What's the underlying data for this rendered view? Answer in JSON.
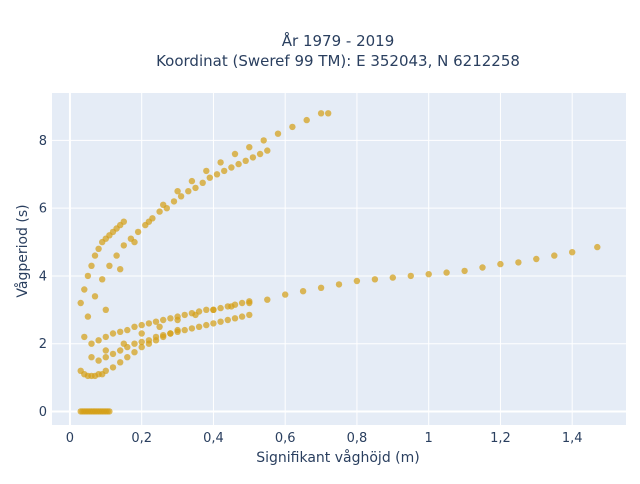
{
  "chart_data": {
    "type": "scatter",
    "title_line1": "År 1979 - 2019",
    "title_line2": "Koordinat (Sweref 99 TM): E 352043, N 6212258",
    "xlabel": "Signifikant våghöjd (m)",
    "ylabel": "Vågperiod (s)",
    "xlim": [
      -0.05,
      1.55
    ],
    "ylim": [
      -0.4,
      9.4
    ],
    "x_ticks": [
      0,
      0.2,
      0.4,
      0.6,
      0.8,
      1,
      1.2,
      1.4
    ],
    "x_tick_labels": [
      "0",
      "0,2",
      "0,4",
      "0,6",
      "0,8",
      "1",
      "1,2",
      "1,4"
    ],
    "y_ticks": [
      0,
      2,
      4,
      6,
      8
    ],
    "y_tick_labels": [
      "0",
      "2",
      "4",
      "6",
      "8"
    ],
    "grid": true,
    "plot_background": "#E5ECF6",
    "marker_color": "#D4A017",
    "series": [
      {
        "x": [
          0.03,
          0.04,
          0.05,
          0.06,
          0.07,
          0.08,
          0.09,
          0.1,
          0.11,
          0.035,
          0.045,
          0.055,
          0.065,
          0.075,
          0.085,
          0.095,
          0.105,
          0.03,
          0.04,
          0.05,
          0.06,
          0.07,
          0.08,
          0.09,
          0.1,
          0.12,
          0.14,
          0.16,
          0.18,
          0.2,
          0.22,
          0.24,
          0.26,
          0.28,
          0.3,
          0.04,
          0.06,
          0.08,
          0.1,
          0.12,
          0.14,
          0.16,
          0.18,
          0.2,
          0.22,
          0.24,
          0.26,
          0.28,
          0.3,
          0.32,
          0.34,
          0.36,
          0.38,
          0.4,
          0.42,
          0.44,
          0.46,
          0.48,
          0.5,
          0.1,
          0.15,
          0.2,
          0.25,
          0.3,
          0.35,
          0.4,
          0.45,
          0.5,
          0.55,
          0.6,
          0.65,
          0.7,
          0.75,
          0.8,
          0.85,
          0.9,
          0.95,
          1.0,
          1.05,
          1.1,
          1.15,
          1.2,
          1.25,
          1.3,
          1.35,
          1.4,
          1.47,
          0.03,
          0.04,
          0.05,
          0.06,
          0.07,
          0.08,
          0.09,
          0.1,
          0.11,
          0.12,
          0.13,
          0.14,
          0.15,
          0.05,
          0.07,
          0.09,
          0.11,
          0.13,
          0.15,
          0.17,
          0.19,
          0.21,
          0.23,
          0.25,
          0.27,
          0.29,
          0.31,
          0.33,
          0.35,
          0.37,
          0.39,
          0.41,
          0.43,
          0.45,
          0.47,
          0.49,
          0.51,
          0.53,
          0.55,
          0.1,
          0.14,
          0.18,
          0.22,
          0.26,
          0.3,
          0.34,
          0.38,
          0.42,
          0.46,
          0.5,
          0.54,
          0.58,
          0.62,
          0.66,
          0.7,
          0.72,
          0.06,
          0.08,
          0.1,
          0.12,
          0.14,
          0.16,
          0.18,
          0.2,
          0.22,
          0.24,
          0.26,
          0.28,
          0.3,
          0.32,
          0.34,
          0.36,
          0.38,
          0.4,
          0.42,
          0.44,
          0.46,
          0.48,
          0.5
        ],
        "y": [
          0,
          0,
          0,
          0,
          0,
          0,
          0,
          0,
          0,
          0,
          0,
          0,
          0,
          0,
          0,
          0,
          0,
          1.2,
          1.1,
          1.05,
          1.05,
          1.05,
          1.1,
          1.1,
          1.2,
          1.3,
          1.45,
          1.6,
          1.75,
          1.9,
          2.0,
          2.1,
          2.2,
          2.3,
          2.4,
          2.2,
          2.0,
          2.1,
          2.2,
          2.3,
          2.35,
          2.4,
          2.5,
          2.55,
          2.6,
          2.65,
          2.7,
          2.75,
          2.8,
          2.85,
          2.9,
          2.95,
          3.0,
          3.0,
          3.05,
          3.1,
          3.15,
          3.2,
          3.25,
          1.8,
          2.0,
          2.3,
          2.5,
          2.7,
          2.85,
          3.0,
          3.1,
          3.2,
          3.3,
          3.45,
          3.55,
          3.65,
          3.75,
          3.85,
          3.9,
          3.95,
          4.0,
          4.05,
          4.1,
          4.15,
          4.25,
          4.35,
          4.4,
          4.5,
          4.6,
          4.7,
          4.85,
          3.2,
          3.6,
          4.0,
          4.3,
          4.6,
          4.8,
          5.0,
          5.1,
          5.2,
          5.3,
          5.4,
          5.5,
          5.6,
          2.8,
          3.4,
          3.9,
          4.3,
          4.6,
          4.9,
          5.1,
          5.3,
          5.5,
          5.7,
          5.9,
          6.0,
          6.2,
          6.35,
          6.5,
          6.6,
          6.75,
          6.9,
          7.0,
          7.1,
          7.2,
          7.3,
          7.4,
          7.5,
          7.6,
          7.7,
          3.0,
          4.2,
          5.0,
          5.6,
          6.1,
          6.5,
          6.8,
          7.1,
          7.35,
          7.6,
          7.8,
          8.0,
          8.2,
          8.4,
          8.6,
          8.8,
          8.8,
          1.6,
          1.5,
          1.6,
          1.7,
          1.8,
          1.9,
          2.0,
          2.05,
          2.1,
          2.2,
          2.25,
          2.3,
          2.35,
          2.4,
          2.45,
          2.5,
          2.55,
          2.6,
          2.65,
          2.7,
          2.75,
          2.8,
          2.85
        ]
      }
    ]
  }
}
